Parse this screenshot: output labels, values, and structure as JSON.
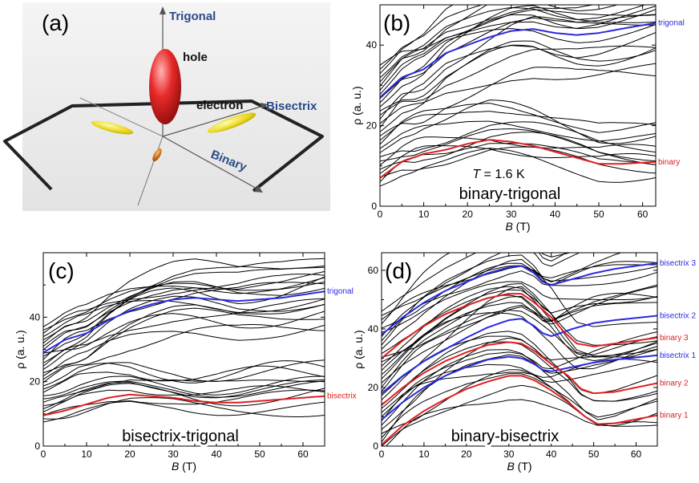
{
  "panel_a": {
    "label": "(a)",
    "axes": [
      "Trigonal",
      "Bisectrix",
      "Binary"
    ],
    "carriers": [
      "hole",
      "electron"
    ]
  },
  "chart_data": [
    {
      "type": "line",
      "panel": "(b)",
      "inner_label": "binary-trigonal",
      "annotation": "T = 1.6 K",
      "xlabel": "B (T)",
      "ylabel": "ρ (a. u.)",
      "xlim": [
        0,
        63
      ],
      "ylim": [
        0,
        50
      ],
      "xticks": [
        0,
        10,
        20,
        30,
        40,
        50,
        60
      ],
      "yticks": [
        0,
        20,
        40
      ],
      "grid": false,
      "n_curves": 30,
      "background_color": "#000000",
      "series": [
        {
          "name": "trigonal",
          "color": "#2a2ae0",
          "x": [
            0,
            5,
            10,
            15,
            20,
            25,
            30,
            35,
            40,
            45,
            50,
            55,
            63
          ],
          "y": [
            27,
            32,
            34,
            38,
            40,
            42,
            43.5,
            44,
            43,
            42.5,
            43,
            44,
            45.5
          ]
        },
        {
          "name": "binary",
          "color": "#e02020",
          "x": [
            0,
            5,
            10,
            15,
            20,
            25,
            30,
            35,
            40,
            45,
            50,
            55,
            63
          ],
          "y": [
            7,
            11,
            13,
            14,
            15.5,
            16.5,
            16,
            15,
            13.5,
            12,
            10.5,
            10.5,
            11
          ]
        }
      ]
    },
    {
      "type": "line",
      "panel": "(c)",
      "inner_label": "bisectrix-trigonal",
      "xlabel": "B (T)",
      "ylabel": "ρ (a. u.)",
      "xlim": [
        0,
        65
      ],
      "ylim": [
        0,
        60
      ],
      "xticks": [
        0,
        10,
        20,
        30,
        40,
        50,
        60
      ],
      "yticks": [
        0,
        20,
        40
      ],
      "grid": false,
      "n_curves": 30,
      "background_color": "#000000",
      "series": [
        {
          "name": "trigonal",
          "color": "#2a2ae0",
          "x": [
            0,
            5,
            10,
            15,
            20,
            25,
            30,
            35,
            40,
            45,
            50,
            55,
            65
          ],
          "y": [
            29,
            33,
            35,
            39,
            42,
            44,
            45.5,
            46,
            45.5,
            45,
            45.5,
            46,
            48
          ]
        },
        {
          "name": "bisectrix",
          "color": "#e02020",
          "x": [
            0,
            5,
            10,
            15,
            20,
            25,
            30,
            35,
            40,
            45,
            50,
            55,
            65
          ],
          "y": [
            9.5,
            11,
            13,
            15,
            16,
            15.5,
            15,
            14,
            13.5,
            13.5,
            14,
            14.5,
            15.5
          ]
        }
      ]
    },
    {
      "type": "line",
      "panel": "(d)",
      "inner_label": "binary-bisectrix",
      "xlabel": "B (T)",
      "ylabel": "ρ (a. u.)",
      "xlim": [
        0,
        65
      ],
      "ylim": [
        0,
        66
      ],
      "xticks": [
        0,
        10,
        20,
        30,
        40,
        50,
        60
      ],
      "yticks": [
        0,
        20,
        40,
        60
      ],
      "grid": false,
      "n_curves": 34,
      "background_color": "#000000",
      "series": [
        {
          "name": "bisectrix 3",
          "color": "#2a2ae0",
          "x": [
            0,
            5,
            10,
            15,
            20,
            25,
            30,
            33,
            36,
            38,
            40,
            45,
            50,
            55,
            65
          ],
          "y": [
            38,
            44,
            49,
            53,
            56,
            59,
            61,
            61.5,
            59,
            56,
            55,
            57,
            59,
            60.5,
            62.5
          ]
        },
        {
          "name": "bisectrix 2",
          "color": "#2a2ae0",
          "x": [
            0,
            5,
            10,
            15,
            20,
            25,
            30,
            33,
            36,
            38,
            40,
            45,
            50,
            55,
            65
          ],
          "y": [
            18,
            24,
            29,
            33,
            37,
            40.5,
            43,
            43.5,
            41,
            38.5,
            37.5,
            40,
            42,
            43,
            44.5
          ]
        },
        {
          "name": "binary 3",
          "color": "#e02020",
          "x": [
            0,
            5,
            10,
            15,
            20,
            25,
            30,
            33,
            36,
            40,
            43,
            46,
            50,
            55,
            65
          ],
          "y": [
            30,
            36,
            41,
            45,
            48,
            50.5,
            52,
            52,
            49,
            44,
            39,
            35,
            34,
            35,
            37
          ]
        },
        {
          "name": "bisectrix 1",
          "color": "#2a2ae0",
          "x": [
            0,
            5,
            10,
            15,
            20,
            25,
            30,
            33,
            36,
            38,
            40,
            45,
            50,
            55,
            65
          ],
          "y": [
            9,
            15,
            20,
            24,
            27,
            29.5,
            30.5,
            30,
            28,
            26,
            25.5,
            27,
            28.5,
            29.5,
            31
          ]
        },
        {
          "name": "binary 2",
          "color": "#e02020",
          "x": [
            0,
            5,
            10,
            15,
            20,
            25,
            30,
            33,
            36,
            40,
            44,
            47,
            50,
            55,
            65
          ],
          "y": [
            14,
            20,
            25,
            29,
            32,
            34.5,
            35.5,
            35,
            32.5,
            28,
            24,
            19.5,
            18,
            18.5,
            21.5
          ]
        },
        {
          "name": "binary 1",
          "color": "#e02020",
          "x": [
            0,
            5,
            10,
            15,
            20,
            25,
            30,
            33,
            36,
            40,
            44,
            48,
            51,
            55,
            65
          ],
          "y": [
            0.5,
            7,
            12,
            16,
            19.5,
            22,
            24,
            24,
            22.5,
            19,
            15,
            10,
            7.5,
            7.8,
            10.5
          ]
        }
      ]
    }
  ]
}
